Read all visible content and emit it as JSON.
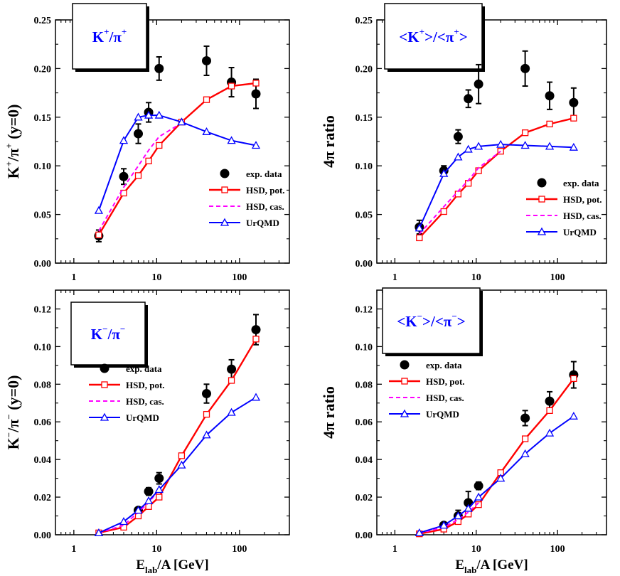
{
  "chart_data": [
    {
      "type": "line",
      "title": "K+/π+",
      "title_main": "K",
      "title_sup1": "+",
      "title_rest": "/π",
      "title_sup2": "+",
      "ylabel_main": "K",
      "ylabel_sup1": "+",
      "ylabel_mid": "/π",
      "ylabel_sup2": "+",
      "ylabel_tail": " (y=0)",
      "xlabel": "",
      "xscale": "log",
      "xlim": [
        0.6,
        400
      ],
      "ylim": [
        0,
        0.25
      ],
      "xticks": [
        1,
        10,
        100
      ],
      "xtick_labels": [
        "1",
        "10",
        "100"
      ],
      "yticks": [
        0,
        0.05,
        0.1,
        0.15,
        0.2,
        0.25
      ],
      "ytick_labels": [
        "0.00",
        "0.05",
        "0.10",
        "0.15",
        "0.20",
        "0.25"
      ],
      "legend_position": "lower-right",
      "series": [
        {
          "name": "exp. data",
          "kind": "points",
          "x": [
            2,
            4,
            6,
            8,
            10.7,
            40,
            80,
            158
          ],
          "y": [
            0.028,
            0.089,
            0.133,
            0.155,
            0.2,
            0.208,
            0.186,
            0.174
          ],
          "err": [
            0.006,
            0.008,
            0.01,
            0.01,
            0.012,
            0.015,
            0.015,
            0.015
          ]
        },
        {
          "name": "HSD, pot.",
          "kind": "line",
          "color": "#ff0000",
          "marker": "square",
          "x": [
            2,
            4,
            6,
            8,
            10.7,
            20,
            40,
            80,
            158
          ],
          "y": [
            0.029,
            0.072,
            0.09,
            0.105,
            0.121,
            0.145,
            0.168,
            0.182,
            0.185
          ]
        },
        {
          "name": "HSD, cas.",
          "kind": "line",
          "color": "#ff00ff",
          "dashed": true,
          "x": [
            2,
            4,
            6,
            8,
            10.7,
            20
          ],
          "y": [
            0.033,
            0.078,
            0.1,
            0.116,
            0.13,
            0.144
          ]
        },
        {
          "name": "UrQMD",
          "kind": "line",
          "color": "#0000ff",
          "marker": "triangle",
          "x": [
            2,
            4,
            6,
            8,
            10.7,
            20,
            40,
            80,
            158
          ],
          "y": [
            0.054,
            0.126,
            0.15,
            0.152,
            0.152,
            0.145,
            0.135,
            0.126,
            0.121
          ]
        }
      ]
    },
    {
      "type": "line",
      "title": "<K+>/<π+>",
      "title_main": "<K",
      "title_sup1": "+",
      "title_rest": ">/<π",
      "title_sup2": "+",
      "title_end": ">",
      "ylabel": "4π ratio",
      "xlabel": "",
      "xscale": "log",
      "xlim": [
        0.6,
        400
      ],
      "ylim": [
        0,
        0.25
      ],
      "xticks": [
        1,
        10,
        100
      ],
      "xtick_labels": [
        "1",
        "10",
        "100"
      ],
      "yticks": [
        0,
        0.05,
        0.1,
        0.15,
        0.2,
        0.25
      ],
      "ytick_labels": [
        "0.00",
        "0.05",
        "0.10",
        "0.15",
        "0.20",
        "0.25"
      ],
      "legend_position": "lower-right",
      "series": [
        {
          "name": "exp. data",
          "kind": "points",
          "x": [
            2,
            4,
            6,
            8,
            10.7,
            40,
            80,
            158
          ],
          "y": [
            0.037,
            0.095,
            0.13,
            0.169,
            0.184,
            0.2,
            0.172,
            0.165
          ],
          "err": [
            0.007,
            0.005,
            0.007,
            0.009,
            0.02,
            0.018,
            0.014,
            0.015
          ]
        },
        {
          "name": "HSD, pot.",
          "kind": "line",
          "color": "#ff0000",
          "marker": "square",
          "x": [
            2,
            4,
            6,
            8,
            10.7,
            20,
            40,
            80,
            158
          ],
          "y": [
            0.026,
            0.053,
            0.071,
            0.082,
            0.095,
            0.115,
            0.134,
            0.143,
            0.149
          ]
        },
        {
          "name": "HSD, cas.",
          "kind": "line",
          "color": "#ff00ff",
          "dashed": true,
          "x": [
            2,
            4,
            6,
            8,
            10.7,
            20
          ],
          "y": [
            0.03,
            0.058,
            0.074,
            0.085,
            0.098,
            0.115
          ]
        },
        {
          "name": "UrQMD",
          "kind": "line",
          "color": "#0000ff",
          "marker": "triangle",
          "x": [
            2,
            4,
            6,
            8,
            10.7,
            20,
            40,
            80,
            158
          ],
          "y": [
            0.036,
            0.092,
            0.109,
            0.117,
            0.12,
            0.122,
            0.121,
            0.12,
            0.119
          ]
        }
      ]
    },
    {
      "type": "line",
      "title": "K−/π−",
      "title_main": "K",
      "title_sup1": "−",
      "title_rest": "/π",
      "title_sup2": "−",
      "ylabel_main": "K",
      "ylabel_sup1": "−",
      "ylabel_mid": "/π",
      "ylabel_sup2": "−",
      "ylabel_tail": " (y=0)",
      "xlabel": "E_lab/A [GeV]",
      "xlabel_main": "E",
      "xlabel_sub": "lab",
      "xlabel_rest": "/A [GeV]",
      "xscale": "log",
      "xlim": [
        0.6,
        400
      ],
      "ylim": [
        0,
        0.13
      ],
      "xticks": [
        1,
        10,
        100
      ],
      "xtick_labels": [
        "1",
        "10",
        "100"
      ],
      "yticks": [
        0,
        0.02,
        0.04,
        0.06,
        0.08,
        0.1,
        0.12
      ],
      "ytick_labels": [
        "0.00",
        "0.02",
        "0.04",
        "0.06",
        "0.08",
        "0.10",
        "0.12"
      ],
      "legend_position": "middle-left",
      "series": [
        {
          "name": "exp. data",
          "kind": "points",
          "x": [
            6,
            8,
            10.7,
            40,
            80,
            158
          ],
          "y": [
            0.013,
            0.023,
            0.03,
            0.075,
            0.088,
            0.109
          ],
          "err": [
            0.001,
            0.002,
            0.003,
            0.005,
            0.005,
            0.008
          ]
        },
        {
          "name": "HSD, pot.",
          "kind": "line",
          "color": "#ff0000",
          "marker": "square",
          "x": [
            2,
            4,
            6,
            8,
            10.7,
            20,
            40,
            80,
            158
          ],
          "y": [
            0.001,
            0.004,
            0.01,
            0.015,
            0.02,
            0.042,
            0.064,
            0.082,
            0.104
          ]
        },
        {
          "name": "HSD, cas.",
          "kind": "line",
          "color": "#ff00ff",
          "dashed": true,
          "x": [
            2,
            4,
            6,
            8,
            10.7
          ],
          "y": [
            0.001,
            0.005,
            0.012,
            0.017,
            0.024
          ]
        },
        {
          "name": "UrQMD",
          "kind": "line",
          "color": "#0000ff",
          "marker": "triangle",
          "x": [
            2,
            4,
            6,
            8,
            10.7,
            20,
            40,
            80,
            158
          ],
          "y": [
            0.001,
            0.007,
            0.013,
            0.018,
            0.024,
            0.037,
            0.053,
            0.065,
            0.073
          ]
        }
      ]
    },
    {
      "type": "line",
      "title": "<K−>/<π−>",
      "title_main": "<K",
      "title_sup1": "−",
      "title_rest": ">/<π",
      "title_sup2": "−",
      "title_end": ">",
      "ylabel": "4π ratio",
      "xlabel": "E_lab/A [GeV]",
      "xlabel_main": "E",
      "xlabel_sub": "lab",
      "xlabel_rest": "/A [GeV]",
      "xscale": "log",
      "xlim": [
        0.6,
        400
      ],
      "ylim": [
        0,
        0.13
      ],
      "xticks": [
        1,
        10,
        100
      ],
      "xtick_labels": [
        "1",
        "10",
        "100"
      ],
      "yticks": [
        0,
        0.02,
        0.04,
        0.06,
        0.08,
        0.1,
        0.12
      ],
      "ytick_labels": [
        "0.00",
        "0.02",
        "0.04",
        "0.06",
        "0.08",
        "0.10",
        "0.12"
      ],
      "legend_position": "upper-left",
      "series": [
        {
          "name": "exp. data",
          "kind": "points",
          "x": [
            4,
            6,
            8,
            10.7,
            40,
            80,
            158
          ],
          "y": [
            0.005,
            0.01,
            0.017,
            0.026,
            0.062,
            0.071,
            0.085
          ],
          "err": [
            0.001,
            0.003,
            0.006,
            0.002,
            0.004,
            0.005,
            0.007
          ]
        },
        {
          "name": "HSD, pot.",
          "kind": "line",
          "color": "#ff0000",
          "marker": "square",
          "x": [
            2,
            4,
            6,
            8,
            10.7,
            20,
            40,
            80,
            158
          ],
          "y": [
            0.0005,
            0.003,
            0.007,
            0.011,
            0.016,
            0.033,
            0.051,
            0.066,
            0.083
          ]
        },
        {
          "name": "HSD, cas.",
          "kind": "line",
          "color": "#ff00ff",
          "dashed": true,
          "x": [
            2,
            4,
            6,
            8,
            10.7
          ],
          "y": [
            0.0008,
            0.004,
            0.008,
            0.012,
            0.017
          ]
        },
        {
          "name": "UrQMD",
          "kind": "line",
          "color": "#0000ff",
          "marker": "triangle",
          "x": [
            2,
            4,
            6,
            8,
            10.7,
            20,
            40,
            80,
            158
          ],
          "y": [
            0.001,
            0.005,
            0.01,
            0.014,
            0.02,
            0.03,
            0.043,
            0.054,
            0.063
          ]
        }
      ]
    }
  ]
}
